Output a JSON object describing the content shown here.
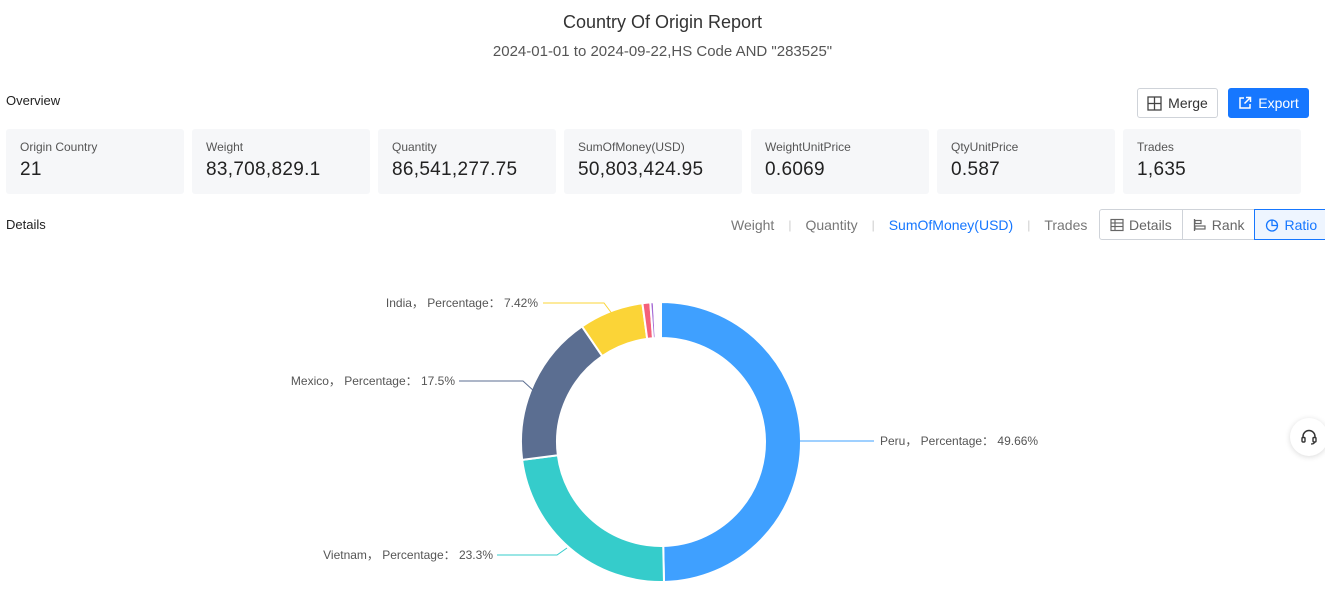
{
  "header": {
    "title": "Country Of Origin Report",
    "subtitle": "2024-01-01 to 2024-09-22,HS Code AND \"283525\""
  },
  "overview": {
    "label": "Overview",
    "merge_label": "Merge",
    "export_label": "Export",
    "stats": [
      {
        "label": "Origin Country",
        "value": "21"
      },
      {
        "label": "Weight",
        "value": "83,708,829.1"
      },
      {
        "label": "Quantity",
        "value": "86,541,277.75"
      },
      {
        "label": "SumOfMoney(USD)",
        "value": "50,803,424.95"
      },
      {
        "label": "WeightUnitPrice",
        "value": "0.6069"
      },
      {
        "label": "QtyUnitPrice",
        "value": "0.587"
      },
      {
        "label": "Trades",
        "value": "1,635"
      }
    ]
  },
  "details": {
    "label": "Details",
    "metric_tabs": [
      "Weight",
      "Quantity",
      "SumOfMoney(USD)",
      "Trades"
    ],
    "active_metric": "SumOfMoney(USD)",
    "view_buttons": [
      "Details",
      "Rank",
      "Ratio"
    ],
    "active_view": "Ratio"
  },
  "colors": {
    "accent": "#1677ff"
  },
  "icons": {
    "merge": "merge-icon",
    "export": "export-icon",
    "details": "table-icon",
    "rank": "bar-chart-icon",
    "ratio": "pie-chart-icon",
    "support": "headset-icon"
  },
  "chart_data": {
    "type": "pie",
    "style": "donut",
    "slices": [
      {
        "name": "Peru",
        "value": 49.66,
        "color": "#3fa0ff",
        "label": "Peru， Percentage： 49.66%"
      },
      {
        "name": "Vietnam",
        "value": 23.3,
        "color": "#35cccb",
        "label": "Vietnam， Percentage： 23.3%"
      },
      {
        "name": "Mexico",
        "value": 17.5,
        "color": "#5b6e91",
        "label": "Mexico， Percentage： 17.5%"
      },
      {
        "name": "India",
        "value": 7.42,
        "color": "#fbd437",
        "label": "India， Percentage： 7.42%"
      },
      {
        "name": "",
        "value": 0.9,
        "color": "#f4617a"
      },
      {
        "name": "",
        "value": 0.4,
        "color": "#a66bd5"
      },
      {
        "name": "",
        "value": 0.82,
        "color": "#ffffff"
      }
    ]
  }
}
